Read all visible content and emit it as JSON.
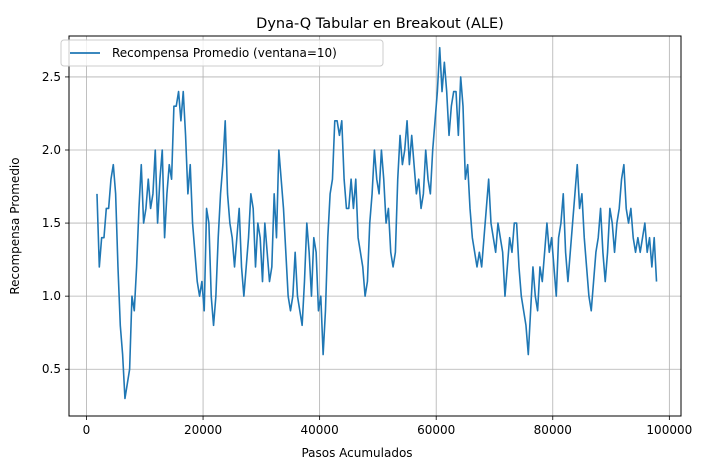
{
  "chart_data": {
    "type": "line",
    "title": "Dyna-Q Tabular en Breakout (ALE)",
    "xlabel": "Pasos Acumulados",
    "ylabel": "Recompensa Promedio",
    "xlim": [
      -3000,
      102000
    ],
    "ylim": [
      0.18,
      2.78
    ],
    "xticks": [
      0,
      20000,
      40000,
      60000,
      80000,
      100000
    ],
    "yticks": [
      0.5,
      1.0,
      1.5,
      2.0,
      2.5
    ],
    "xtick_labels": [
      "0",
      "20000",
      "40000",
      "60000",
      "80000",
      "100000"
    ],
    "ytick_labels": [
      "0.5",
      "1.0",
      "1.5",
      "2.0",
      "2.5"
    ],
    "grid": true,
    "legend_position": "top-left",
    "series": [
      {
        "name": "Recompensa Promedio (ventana=10)",
        "color": "#1f77b4",
        "points": [
          [
            1800,
            1.7
          ],
          [
            2200,
            1.2
          ],
          [
            2600,
            1.4
          ],
          [
            3000,
            1.4
          ],
          [
            3400,
            1.6
          ],
          [
            3800,
            1.6
          ],
          [
            4200,
            1.8
          ],
          [
            4600,
            1.9
          ],
          [
            5000,
            1.7
          ],
          [
            5400,
            1.2
          ],
          [
            5800,
            0.8
          ],
          [
            6200,
            0.6
          ],
          [
            6600,
            0.3
          ],
          [
            7000,
            0.4
          ],
          [
            7400,
            0.5
          ],
          [
            7800,
            1.0
          ],
          [
            8200,
            0.9
          ],
          [
            8600,
            1.2
          ],
          [
            9000,
            1.6
          ],
          [
            9400,
            1.9
          ],
          [
            9800,
            1.5
          ],
          [
            10200,
            1.6
          ],
          [
            10600,
            1.8
          ],
          [
            11000,
            1.6
          ],
          [
            11400,
            1.7
          ],
          [
            11800,
            2.0
          ],
          [
            12200,
            1.5
          ],
          [
            12600,
            1.8
          ],
          [
            13000,
            2.0
          ],
          [
            13400,
            1.4
          ],
          [
            13800,
            1.7
          ],
          [
            14200,
            1.9
          ],
          [
            14600,
            1.8
          ],
          [
            15000,
            2.3
          ],
          [
            15400,
            2.3
          ],
          [
            15800,
            2.4
          ],
          [
            16200,
            2.2
          ],
          [
            16600,
            2.4
          ],
          [
            17000,
            2.1
          ],
          [
            17400,
            1.7
          ],
          [
            17800,
            1.9
          ],
          [
            18200,
            1.5
          ],
          [
            18600,
            1.3
          ],
          [
            19000,
            1.1
          ],
          [
            19400,
            1.0
          ],
          [
            19800,
            1.1
          ],
          [
            20200,
            0.9
          ],
          [
            20600,
            1.6
          ],
          [
            21000,
            1.5
          ],
          [
            21400,
            1.0
          ],
          [
            21800,
            0.8
          ],
          [
            22200,
            1.0
          ],
          [
            22600,
            1.4
          ],
          [
            23000,
            1.7
          ],
          [
            23400,
            1.9
          ],
          [
            23800,
            2.2
          ],
          [
            24200,
            1.7
          ],
          [
            24600,
            1.5
          ],
          [
            25000,
            1.4
          ],
          [
            25400,
            1.2
          ],
          [
            25800,
            1.4
          ],
          [
            26200,
            1.6
          ],
          [
            26600,
            1.2
          ],
          [
            27000,
            1.0
          ],
          [
            27400,
            1.2
          ],
          [
            27800,
            1.4
          ],
          [
            28200,
            1.7
          ],
          [
            28600,
            1.6
          ],
          [
            29000,
            1.2
          ],
          [
            29400,
            1.5
          ],
          [
            29800,
            1.4
          ],
          [
            30200,
            1.1
          ],
          [
            30600,
            1.5
          ],
          [
            31000,
            1.3
          ],
          [
            31400,
            1.1
          ],
          [
            31800,
            1.2
          ],
          [
            32200,
            1.7
          ],
          [
            32600,
            1.4
          ],
          [
            33000,
            2.0
          ],
          [
            33400,
            1.8
          ],
          [
            33800,
            1.6
          ],
          [
            34200,
            1.3
          ],
          [
            34600,
            1.0
          ],
          [
            35000,
            0.9
          ],
          [
            35400,
            1.0
          ],
          [
            35800,
            1.3
          ],
          [
            36200,
            1.0
          ],
          [
            36600,
            0.9
          ],
          [
            37000,
            0.8
          ],
          [
            37400,
            1.1
          ],
          [
            37800,
            1.5
          ],
          [
            38200,
            1.3
          ],
          [
            38600,
            1.0
          ],
          [
            39000,
            1.4
          ],
          [
            39400,
            1.3
          ],
          [
            39800,
            0.9
          ],
          [
            40200,
            1.0
          ],
          [
            40600,
            0.6
          ],
          [
            41000,
            0.9
          ],
          [
            41400,
            1.4
          ],
          [
            41800,
            1.7
          ],
          [
            42200,
            1.8
          ],
          [
            42600,
            2.2
          ],
          [
            43000,
            2.2
          ],
          [
            43400,
            2.1
          ],
          [
            43800,
            2.2
          ],
          [
            44200,
            1.8
          ],
          [
            44600,
            1.6
          ],
          [
            45000,
            1.6
          ],
          [
            45400,
            1.8
          ],
          [
            45800,
            1.6
          ],
          [
            46200,
            1.8
          ],
          [
            46600,
            1.4
          ],
          [
            47000,
            1.3
          ],
          [
            47400,
            1.2
          ],
          [
            47800,
            1.0
          ],
          [
            48200,
            1.1
          ],
          [
            48600,
            1.5
          ],
          [
            49000,
            1.7
          ],
          [
            49400,
            2.0
          ],
          [
            49800,
            1.8
          ],
          [
            50200,
            1.7
          ],
          [
            50600,
            2.0
          ],
          [
            51000,
            1.8
          ],
          [
            51400,
            1.5
          ],
          [
            51800,
            1.6
          ],
          [
            52200,
            1.3
          ],
          [
            52600,
            1.2
          ],
          [
            53000,
            1.3
          ],
          [
            53400,
            1.8
          ],
          [
            53800,
            2.1
          ],
          [
            54200,
            1.9
          ],
          [
            54600,
            2.0
          ],
          [
            55000,
            2.2
          ],
          [
            55400,
            1.9
          ],
          [
            55800,
            2.1
          ],
          [
            56200,
            1.9
          ],
          [
            56600,
            1.7
          ],
          [
            57000,
            1.8
          ],
          [
            57400,
            1.6
          ],
          [
            57800,
            1.7
          ],
          [
            58200,
            2.0
          ],
          [
            58600,
            1.8
          ],
          [
            59000,
            1.7
          ],
          [
            59400,
            2.0
          ],
          [
            59800,
            2.2
          ],
          [
            60200,
            2.4
          ],
          [
            60600,
            2.7
          ],
          [
            61000,
            2.4
          ],
          [
            61400,
            2.6
          ],
          [
            61800,
            2.4
          ],
          [
            62200,
            2.1
          ],
          [
            62600,
            2.3
          ],
          [
            63000,
            2.4
          ],
          [
            63400,
            2.4
          ],
          [
            63800,
            2.1
          ],
          [
            64200,
            2.5
          ],
          [
            64600,
            2.3
          ],
          [
            65000,
            1.8
          ],
          [
            65400,
            1.9
          ],
          [
            65800,
            1.6
          ],
          [
            66200,
            1.4
          ],
          [
            66600,
            1.3
          ],
          [
            67000,
            1.2
          ],
          [
            67400,
            1.3
          ],
          [
            67800,
            1.2
          ],
          [
            68200,
            1.4
          ],
          [
            68600,
            1.6
          ],
          [
            69000,
            1.8
          ],
          [
            69400,
            1.5
          ],
          [
            69800,
            1.4
          ],
          [
            70200,
            1.3
          ],
          [
            70600,
            1.5
          ],
          [
            71000,
            1.4
          ],
          [
            71400,
            1.3
          ],
          [
            71800,
            1.0
          ],
          [
            72200,
            1.2
          ],
          [
            72600,
            1.4
          ],
          [
            73000,
            1.3
          ],
          [
            73400,
            1.5
          ],
          [
            73800,
            1.5
          ],
          [
            74200,
            1.2
          ],
          [
            74600,
            1.0
          ],
          [
            75000,
            0.9
          ],
          [
            75400,
            0.8
          ],
          [
            75800,
            0.6
          ],
          [
            76200,
            0.9
          ],
          [
            76600,
            1.2
          ],
          [
            77000,
            1.0
          ],
          [
            77400,
            0.9
          ],
          [
            77800,
            1.2
          ],
          [
            78200,
            1.1
          ],
          [
            78600,
            1.3
          ],
          [
            79000,
            1.5
          ],
          [
            79400,
            1.3
          ],
          [
            79800,
            1.4
          ],
          [
            80200,
            1.2
          ],
          [
            80600,
            1.0
          ],
          [
            81000,
            1.4
          ],
          [
            81400,
            1.5
          ],
          [
            81800,
            1.7
          ],
          [
            82200,
            1.3
          ],
          [
            82600,
            1.1
          ],
          [
            83000,
            1.3
          ],
          [
            83400,
            1.5
          ],
          [
            83800,
            1.7
          ],
          [
            84200,
            1.9
          ],
          [
            84600,
            1.6
          ],
          [
            85000,
            1.7
          ],
          [
            85400,
            1.4
          ],
          [
            85800,
            1.2
          ],
          [
            86200,
            1.0
          ],
          [
            86600,
            0.9
          ],
          [
            87000,
            1.1
          ],
          [
            87400,
            1.3
          ],
          [
            87800,
            1.4
          ],
          [
            88200,
            1.6
          ],
          [
            88600,
            1.3
          ],
          [
            89000,
            1.1
          ],
          [
            89400,
            1.3
          ],
          [
            89800,
            1.6
          ],
          [
            90200,
            1.5
          ],
          [
            90600,
            1.3
          ],
          [
            91000,
            1.5
          ],
          [
            91400,
            1.6
          ],
          [
            91800,
            1.8
          ],
          [
            92200,
            1.9
          ],
          [
            92600,
            1.6
          ],
          [
            93000,
            1.5
          ],
          [
            93400,
            1.6
          ],
          [
            93800,
            1.4
          ],
          [
            94200,
            1.3
          ],
          [
            94600,
            1.4
          ],
          [
            95000,
            1.3
          ],
          [
            95400,
            1.4
          ],
          [
            95800,
            1.5
          ],
          [
            96200,
            1.3
          ],
          [
            96600,
            1.4
          ],
          [
            97000,
            1.2
          ],
          [
            97400,
            1.4
          ],
          [
            97800,
            1.1
          ]
        ]
      }
    ]
  }
}
